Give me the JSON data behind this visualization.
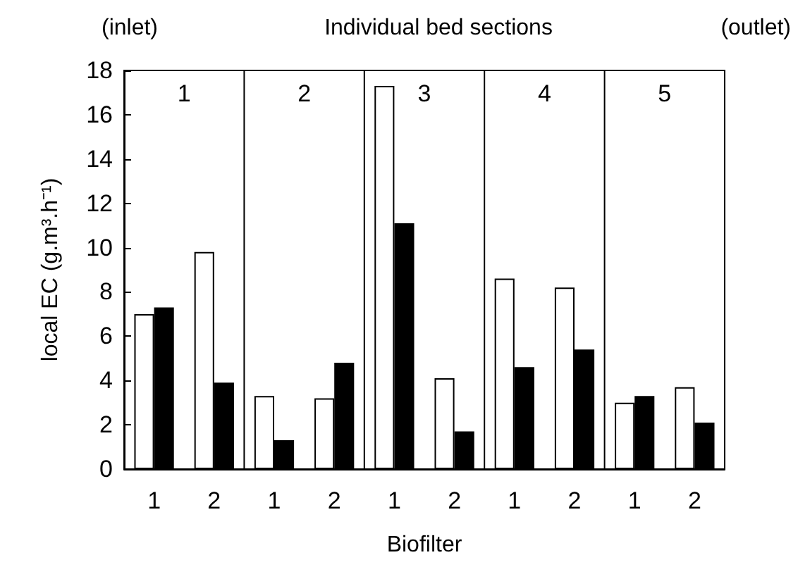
{
  "chart_data": {
    "type": "bar",
    "xlabel": "Biofilter",
    "ylabel": "local EC (g.m³.h⁻¹)",
    "annotations": [
      "(inlet)",
      "Individual bed sections",
      "(outlet)",
      "1",
      "2",
      "3",
      "4",
      "5"
    ],
    "categories": [
      "1",
      "2",
      "1",
      "2",
      "1",
      "2",
      "1",
      "2",
      "1",
      "2"
    ],
    "series": [
      {
        "color": "#ffffff",
        "values": [
          7.0,
          9.8,
          3.3,
          3.2,
          17.3,
          4.1,
          8.6,
          8.2,
          3.0,
          3.7
        ]
      },
      {
        "color": "#000000",
        "values": [
          7.3,
          3.9,
          1.3,
          4.8,
          11.1,
          1.7,
          4.6,
          5.4,
          3.3,
          2.1
        ]
      }
    ],
    "ylim": [
      0,
      18
    ],
    "yticks": [
      0,
      2,
      4,
      6,
      8,
      10,
      12,
      14,
      16,
      18
    ],
    "grid": false
  }
}
